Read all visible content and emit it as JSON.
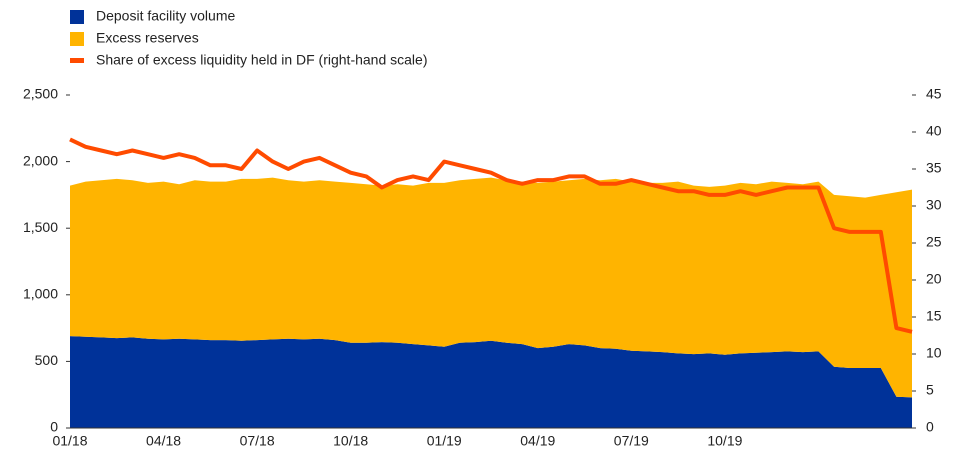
{
  "chart_data": {
    "type": "stacked-area-line",
    "x": [
      "01/18",
      null,
      null,
      null,
      null,
      null,
      "04/18",
      null,
      null,
      null,
      null,
      null,
      "07/18",
      null,
      null,
      null,
      null,
      null,
      "10/18",
      null,
      null,
      null,
      null,
      null,
      "01/19",
      null,
      null,
      null,
      null,
      null,
      "04/19",
      null,
      null,
      null,
      null,
      null,
      "07/19",
      null,
      null,
      null,
      null,
      null,
      "10/19",
      null,
      null,
      null,
      null,
      null,
      null,
      null,
      null,
      null,
      null,
      null,
      null
    ],
    "series": [
      {
        "name": "Deposit facility volume",
        "color": "#003299",
        "kind": "area",
        "values": [
          690,
          685,
          680,
          675,
          680,
          670,
          665,
          670,
          665,
          660,
          660,
          655,
          660,
          665,
          670,
          665,
          670,
          660,
          640,
          640,
          645,
          640,
          630,
          620,
          610,
          640,
          645,
          655,
          640,
          630,
          600,
          610,
          630,
          620,
          600,
          595,
          580,
          575,
          570,
          560,
          555,
          560,
          550,
          560,
          565,
          570,
          575,
          570,
          575,
          460,
          450,
          450,
          450,
          235,
          230
        ]
      },
      {
        "name": "Excess reserves",
        "color": "#ffb400",
        "kind": "area",
        "values": [
          1130,
          1165,
          1180,
          1195,
          1180,
          1170,
          1185,
          1160,
          1195,
          1190,
          1190,
          1215,
          1210,
          1215,
          1190,
          1185,
          1190,
          1190,
          1200,
          1190,
          1175,
          1190,
          1190,
          1220,
          1230,
          1220,
          1225,
          1225,
          1220,
          1220,
          1240,
          1240,
          1230,
          1250,
          1260,
          1275,
          1270,
          1265,
          1270,
          1290,
          1265,
          1250,
          1270,
          1280,
          1265,
          1280,
          1265,
          1260,
          1275,
          1290,
          1290,
          1280,
          1300,
          1535,
          1560
        ]
      },
      {
        "name": "Share of excess liquidity held in DF (right-hand scale)",
        "color": "#ff4b00",
        "kind": "line",
        "axis": "y2",
        "values": [
          39,
          38,
          37.5,
          37,
          37.5,
          37,
          36.5,
          37,
          36.5,
          35.5,
          35.5,
          35,
          37.5,
          36,
          35,
          36,
          36.5,
          35.5,
          34.5,
          34,
          32.5,
          33.5,
          34,
          33.5,
          36,
          35.5,
          35,
          34.5,
          33.5,
          33,
          33.5,
          33.5,
          34,
          34,
          33,
          33,
          33.5,
          33,
          32.5,
          32,
          32,
          31.5,
          31.5,
          32,
          31.5,
          32,
          32.5,
          32.5,
          32.5,
          27,
          26.5,
          26.5,
          26.5,
          13.5,
          13
        ]
      }
    ],
    "ylim": [
      0,
      2500
    ],
    "yticks": [
      0,
      500,
      {
        "value": 1000,
        "label": "1,000"
      },
      {
        "value": 1500,
        "label": "1,500"
      },
      {
        "value": 2000,
        "label": "2,000"
      },
      {
        "value": 2500,
        "label": "2,500"
      }
    ],
    "y2lim": [
      0,
      45
    ],
    "y2ticks": [
      0,
      5,
      10,
      15,
      20,
      25,
      30,
      35,
      40,
      45
    ],
    "legend": "top-left"
  }
}
